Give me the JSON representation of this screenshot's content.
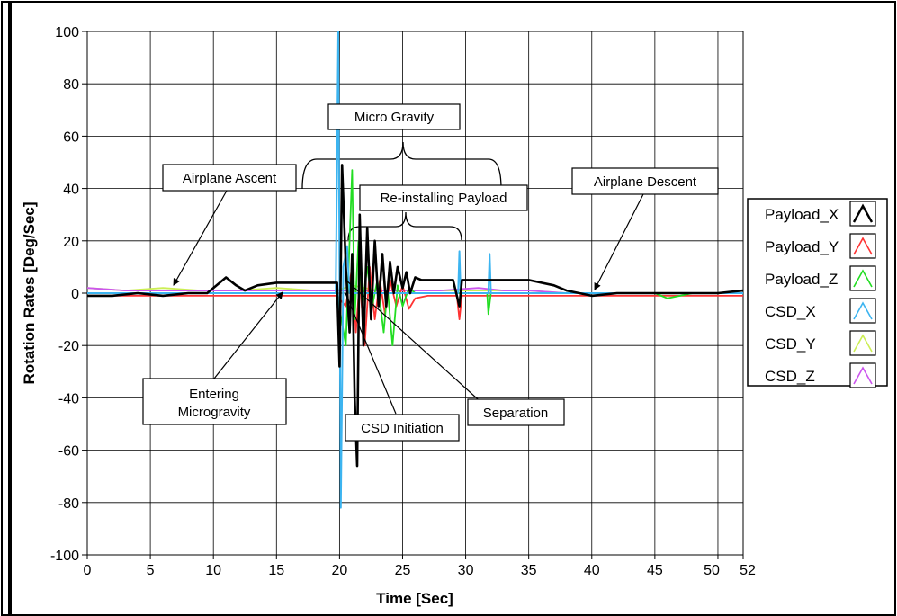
{
  "chart_data": {
    "type": "line",
    "xlabel": "Time [Sec]",
    "ylabel": "Rotation Rates [Deg/Sec]",
    "xlim": [
      0,
      52
    ],
    "ylim": [
      -100,
      100
    ],
    "x_ticks": [
      0,
      5,
      10,
      15,
      20,
      25,
      30,
      35,
      40,
      45,
      50,
      52
    ],
    "y_ticks": [
      100,
      80,
      60,
      40,
      20,
      0,
      -20,
      -40,
      -60,
      -80,
      -100
    ],
    "grid": true,
    "legend_position": "right",
    "series": [
      {
        "name": "Payload_X",
        "color": "#000000",
        "points": [
          [
            0,
            -1
          ],
          [
            2,
            -1
          ],
          [
            4,
            0
          ],
          [
            6,
            -1
          ],
          [
            8,
            0
          ],
          [
            9.5,
            0
          ],
          [
            10.5,
            4
          ],
          [
            11,
            6
          ],
          [
            11.8,
            3
          ],
          [
            12.5,
            1
          ],
          [
            13.5,
            3
          ],
          [
            15,
            4
          ],
          [
            16,
            4
          ],
          [
            17,
            4
          ],
          [
            18,
            4
          ],
          [
            19,
            4
          ],
          [
            19.8,
            4
          ],
          [
            20,
            -28
          ],
          [
            20.2,
            49
          ],
          [
            20.5,
            10
          ],
          [
            20.8,
            -15
          ],
          [
            21,
            15
          ],
          [
            21.2,
            -40
          ],
          [
            21.4,
            -66
          ],
          [
            21.6,
            30
          ],
          [
            21.9,
            -20
          ],
          [
            22.2,
            25
          ],
          [
            22.5,
            -10
          ],
          [
            22.8,
            20
          ],
          [
            23.1,
            -5
          ],
          [
            23.4,
            15
          ],
          [
            23.7,
            -5
          ],
          [
            24,
            12
          ],
          [
            24.3,
            0
          ],
          [
            24.6,
            10
          ],
          [
            25,
            2
          ],
          [
            25.3,
            8
          ],
          [
            25.6,
            0
          ],
          [
            26,
            6
          ],
          [
            26.5,
            5
          ],
          [
            27,
            5
          ],
          [
            28,
            5
          ],
          [
            29,
            5
          ],
          [
            29.5,
            -5
          ],
          [
            29.7,
            5
          ],
          [
            30,
            5
          ],
          [
            31,
            5
          ],
          [
            32,
            5
          ],
          [
            33,
            5
          ],
          [
            34,
            5
          ],
          [
            35,
            5
          ],
          [
            36,
            4
          ],
          [
            37,
            3
          ],
          [
            38,
            1
          ],
          [
            39,
            0
          ],
          [
            40,
            -1
          ],
          [
            42,
            0
          ],
          [
            44,
            0
          ],
          [
            46,
            0
          ],
          [
            48,
            0
          ],
          [
            50,
            0
          ],
          [
            52,
            1
          ]
        ]
      },
      {
        "name": "Payload_Y",
        "color": "#ff3333",
        "points": [
          [
            0,
            -1
          ],
          [
            5,
            -1
          ],
          [
            10,
            -1
          ],
          [
            15,
            -1
          ],
          [
            19.8,
            -1
          ],
          [
            20.5,
            -5
          ],
          [
            21,
            10
          ],
          [
            21.3,
            -15
          ],
          [
            21.6,
            5
          ],
          [
            22,
            -20
          ],
          [
            22.4,
            10
          ],
          [
            22.8,
            -10
          ],
          [
            23.2,
            5
          ],
          [
            23.6,
            -8
          ],
          [
            24,
            5
          ],
          [
            24.5,
            -5
          ],
          [
            25,
            3
          ],
          [
            25.5,
            -6
          ],
          [
            26,
            -2
          ],
          [
            27,
            -1
          ],
          [
            28,
            -1
          ],
          [
            29.3,
            -1
          ],
          [
            29.5,
            -10
          ],
          [
            29.7,
            -1
          ],
          [
            31,
            -1
          ],
          [
            35,
            -1
          ],
          [
            40,
            -1
          ],
          [
            45,
            -1
          ],
          [
            52,
            -1
          ]
        ]
      },
      {
        "name": "Payload_Z",
        "color": "#22dd22",
        "points": [
          [
            0,
            0
          ],
          [
            5,
            0
          ],
          [
            10,
            0
          ],
          [
            15,
            0
          ],
          [
            19.8,
            0
          ],
          [
            20.5,
            -20
          ],
          [
            21,
            47
          ],
          [
            21.2,
            -10
          ],
          [
            21.5,
            20
          ],
          [
            21.8,
            -5
          ],
          [
            22.2,
            10
          ],
          [
            22.6,
            -5
          ],
          [
            23,
            5
          ],
          [
            23.5,
            -15
          ],
          [
            23.8,
            2
          ],
          [
            24.2,
            -20
          ],
          [
            24.6,
            3
          ],
          [
            25,
            -5
          ],
          [
            25.5,
            2
          ],
          [
            26,
            0
          ],
          [
            27,
            0
          ],
          [
            29,
            0
          ],
          [
            31,
            0
          ],
          [
            31.7,
            0
          ],
          [
            31.8,
            -8
          ],
          [
            32,
            0
          ],
          [
            35,
            0
          ],
          [
            40,
            0
          ],
          [
            45,
            0
          ],
          [
            46,
            -2
          ],
          [
            48,
            0
          ],
          [
            52,
            0
          ]
        ]
      },
      {
        "name": "CSD_X",
        "color": "#3cb4f0",
        "points": [
          [
            0,
            0
          ],
          [
            5,
            0
          ],
          [
            10,
            0
          ],
          [
            15,
            0
          ],
          [
            19.7,
            0
          ],
          [
            19.9,
            100
          ],
          [
            20.1,
            -82
          ],
          [
            20.3,
            10
          ],
          [
            20.6,
            18
          ],
          [
            20.8,
            0
          ],
          [
            21,
            0
          ],
          [
            25,
            0
          ],
          [
            29,
            0
          ],
          [
            29.4,
            0
          ],
          [
            29.5,
            16
          ],
          [
            29.6,
            0
          ],
          [
            31.8,
            0
          ],
          [
            31.9,
            15
          ],
          [
            32,
            0
          ],
          [
            35,
            0
          ],
          [
            40,
            0
          ],
          [
            52,
            0
          ]
        ]
      },
      {
        "name": "CSD_Y",
        "color": "#ccee55",
        "points": [
          [
            0,
            2
          ],
          [
            3,
            1
          ],
          [
            6,
            2
          ],
          [
            9,
            1
          ],
          [
            12,
            1
          ],
          [
            15,
            2
          ],
          [
            18,
            1
          ],
          [
            19.8,
            1
          ],
          [
            21,
            3
          ],
          [
            23,
            1
          ],
          [
            26,
            1
          ],
          [
            29,
            1
          ],
          [
            32,
            1
          ],
          [
            35,
            1
          ],
          [
            38,
            0
          ],
          [
            41,
            0
          ],
          [
            44,
            0
          ],
          [
            47,
            0
          ],
          [
            50,
            0
          ],
          [
            52,
            0
          ]
        ]
      },
      {
        "name": "CSD_Z",
        "color": "#cc55ee",
        "points": [
          [
            0,
            2
          ],
          [
            3,
            1
          ],
          [
            6,
            1
          ],
          [
            9,
            1
          ],
          [
            12,
            1
          ],
          [
            15,
            1
          ],
          [
            18,
            1
          ],
          [
            20,
            1
          ],
          [
            22,
            1
          ],
          [
            25,
            1
          ],
          [
            28,
            1
          ],
          [
            31,
            2
          ],
          [
            33,
            1
          ],
          [
            35,
            1
          ],
          [
            38,
            0
          ],
          [
            41,
            0
          ],
          [
            44,
            0
          ],
          [
            47,
            0
          ],
          [
            50,
            0
          ],
          [
            52,
            0
          ]
        ]
      }
    ],
    "annotations": [
      {
        "text": "Micro Gravity",
        "target": [
          20.5,
          60
        ]
      },
      {
        "text": "Re-installing Payload",
        "target": [
          21,
          35
        ]
      },
      {
        "text": "Airplane Ascent",
        "target": [
          7,
          2
        ]
      },
      {
        "text": "Airplane Descent",
        "target": [
          40,
          1
        ]
      },
      {
        "text": "Entering Microgravity",
        "target": [
          15.5,
          2
        ]
      },
      {
        "text": "CSD Initiation",
        "target": [
          20.5,
          5
        ]
      },
      {
        "text": "Separation",
        "target": [
          20.7,
          8
        ]
      }
    ]
  }
}
